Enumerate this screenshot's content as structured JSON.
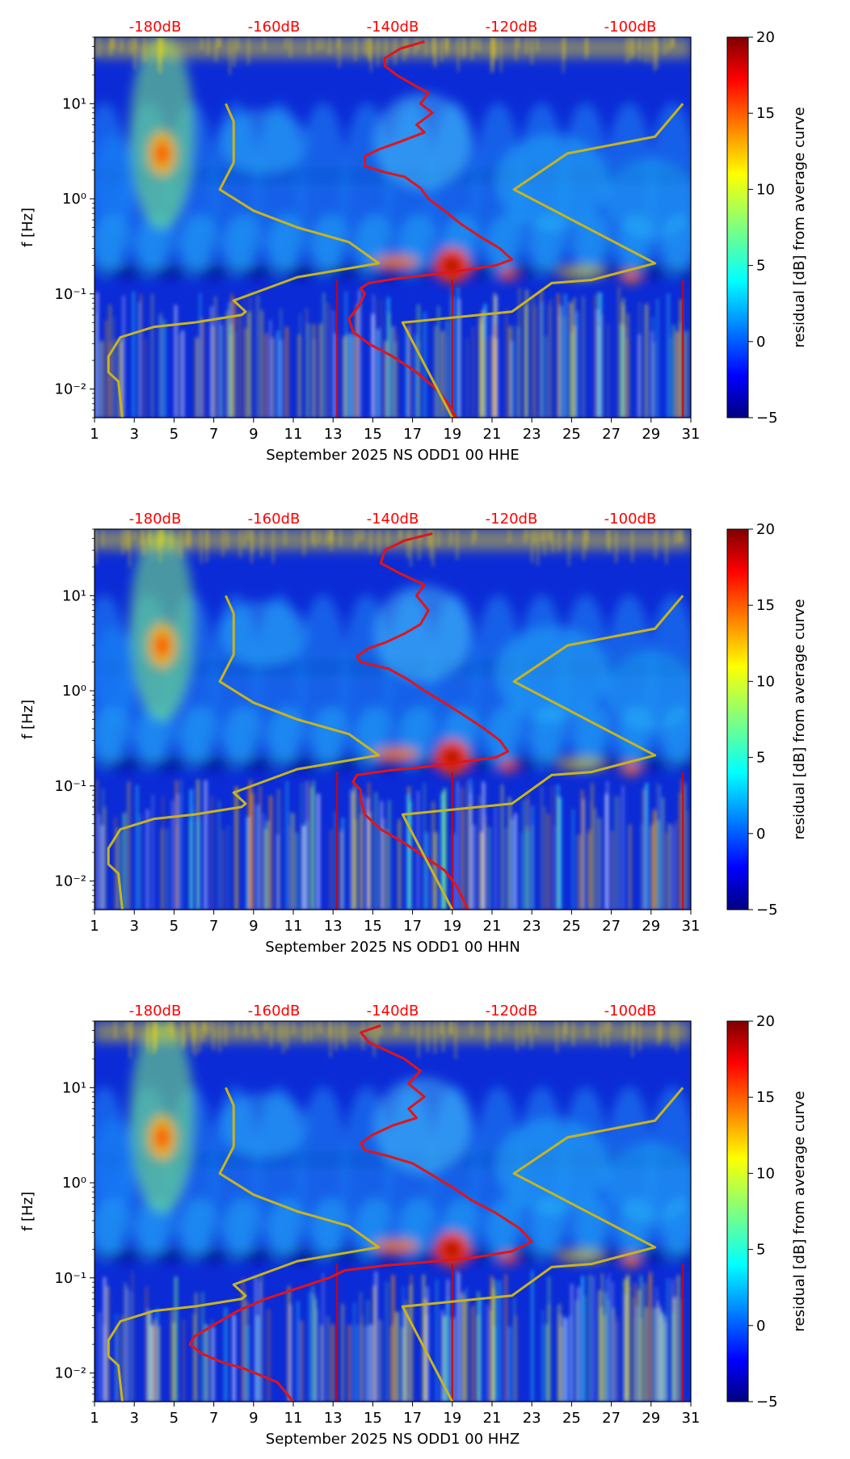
{
  "chart_data": [
    {
      "type": "heatmap",
      "xlabel": "September 2025 NS ODD1 00 HHE",
      "ylabel": "f [Hz]",
      "xlim": [
        1,
        31
      ],
      "ylim": [
        0.005,
        50
      ],
      "y_scale": "log",
      "x_ticks": [
        "1",
        "3",
        "5",
        "7",
        "9",
        "11",
        "13",
        "15",
        "17",
        "19",
        "21",
        "23",
        "25",
        "27",
        "29",
        "31"
      ],
      "y_ticks": [
        {
          "v": 10,
          "label": "10¹"
        },
        {
          "v": 1,
          "label": "10⁰"
        },
        {
          "v": 0.1,
          "label": "10⁻¹"
        },
        {
          "v": 0.01,
          "label": "10⁻²"
        }
      ],
      "top_labels": [
        "-180dB",
        "-160dB",
        "-140dB",
        "-120dB",
        "-100dB"
      ],
      "colorbar": {
        "label": "residual [dB] from average curve",
        "range": [
          -5,
          20
        ],
        "ticks": [
          "20",
          "15",
          "10",
          "5",
          "0",
          "−5"
        ],
        "colormap": "jet"
      },
      "series": [
        {
          "color": "#e0141a",
          "points": [
            [
              17.6,
              45
            ],
            [
              16.4,
              38
            ],
            [
              15.6,
              30
            ],
            [
              15.6,
              25
            ],
            [
              16.2,
              20
            ],
            [
              17.0,
              16
            ],
            [
              17.8,
              13
            ],
            [
              17.4,
              10
            ],
            [
              18.0,
              8
            ],
            [
              17.2,
              6
            ],
            [
              17.6,
              5
            ],
            [
              16.4,
              4
            ],
            [
              15.3,
              3.3
            ],
            [
              14.6,
              2.8
            ],
            [
              14.6,
              2.2
            ],
            [
              15.6,
              1.9
            ],
            [
              16.6,
              1.7
            ],
            [
              17.4,
              1.3
            ],
            [
              17.8,
              1.0
            ],
            [
              18.6,
              0.75
            ],
            [
              19.4,
              0.55
            ],
            [
              20.4,
              0.4
            ],
            [
              21.4,
              0.3
            ],
            [
              22.0,
              0.23
            ],
            [
              21.2,
              0.2
            ],
            [
              19.8,
              0.18
            ],
            [
              18.0,
              0.16
            ],
            [
              16.2,
              0.145
            ],
            [
              14.8,
              0.13
            ],
            [
              14.4,
              0.115
            ],
            [
              14.6,
              0.1
            ],
            [
              14.3,
              0.075
            ],
            [
              13.8,
              0.055
            ],
            [
              14.0,
              0.04
            ],
            [
              14.8,
              0.03
            ],
            [
              16.0,
              0.022
            ],
            [
              17.2,
              0.015
            ],
            [
              18.2,
              0.01
            ],
            [
              18.8,
              0.007
            ],
            [
              19.2,
              0.005
            ]
          ]
        },
        {
          "color": "#c8b41e",
          "points": [
            [
              7.6,
              10
            ],
            [
              8.0,
              6.5
            ],
            [
              8.0,
              2.4
            ],
            [
              7.3,
              1.25
            ],
            [
              9.0,
              0.75
            ],
            [
              11.2,
              0.5
            ],
            [
              13.8,
              0.35
            ],
            [
              15.3,
              0.21
            ],
            [
              11.2,
              0.15
            ],
            [
              8.0,
              0.085
            ],
            [
              8.6,
              0.065
            ],
            [
              8.4,
              0.06
            ],
            [
              6.0,
              0.05
            ],
            [
              4.0,
              0.045
            ],
            [
              2.3,
              0.035
            ],
            [
              1.7,
              0.022
            ],
            [
              1.7,
              0.015
            ],
            [
              2.2,
              0.012
            ],
            [
              2.4,
              0.005
            ]
          ]
        },
        {
          "color": "#c8b41e",
          "points": [
            [
              30.6,
              10
            ],
            [
              29.2,
              4.5
            ],
            [
              24.8,
              3.0
            ],
            [
              22.1,
              1.25
            ],
            [
              29.2,
              0.21
            ],
            [
              26.0,
              0.14
            ],
            [
              24.0,
              0.13
            ],
            [
              22.0,
              0.065
            ],
            [
              16.5,
              0.05
            ],
            [
              19.0,
              0.005
            ]
          ]
        }
      ]
    },
    {
      "type": "heatmap",
      "xlabel": "September 2025 NS ODD1 00 HHN",
      "ylabel": "f [Hz]",
      "xlim": [
        1,
        31
      ],
      "ylim": [
        0.005,
        50
      ],
      "y_scale": "log",
      "x_ticks": [
        "1",
        "3",
        "5",
        "7",
        "9",
        "11",
        "13",
        "15",
        "17",
        "19",
        "21",
        "23",
        "25",
        "27",
        "29",
        "31"
      ],
      "y_ticks": [
        {
          "v": 10,
          "label": "10¹"
        },
        {
          "v": 1,
          "label": "10⁰"
        },
        {
          "v": 0.1,
          "label": "10⁻¹"
        },
        {
          "v": 0.01,
          "label": "10⁻²"
        }
      ],
      "top_labels": [
        "-180dB",
        "-160dB",
        "-140dB",
        "-120dB",
        "-100dB"
      ],
      "colorbar": {
        "label": "residual [dB] from average curve",
        "range": [
          -5,
          20
        ],
        "ticks": [
          "20",
          "15",
          "10",
          "5",
          "0",
          "−5"
        ],
        "colormap": "jet"
      },
      "series": [
        {
          "color": "#e0141a",
          "points": [
            [
              18.0,
              45
            ],
            [
              16.6,
              38
            ],
            [
              15.6,
              30
            ],
            [
              15.4,
              22
            ],
            [
              16.4,
              17
            ],
            [
              17.6,
              13
            ],
            [
              17.2,
              10
            ],
            [
              17.8,
              7
            ],
            [
              17.4,
              5
            ],
            [
              16.6,
              4
            ],
            [
              15.6,
              3.2
            ],
            [
              14.8,
              2.8
            ],
            [
              14.2,
              2.3
            ],
            [
              14.4,
              2.0
            ],
            [
              15.8,
              1.7
            ],
            [
              16.8,
              1.3
            ],
            [
              17.6,
              1.0
            ],
            [
              18.6,
              0.75
            ],
            [
              19.6,
              0.55
            ],
            [
              20.6,
              0.4
            ],
            [
              21.4,
              0.3
            ],
            [
              21.8,
              0.23
            ],
            [
              21.2,
              0.2
            ],
            [
              19.6,
              0.18
            ],
            [
              17.8,
              0.16
            ],
            [
              15.8,
              0.145
            ],
            [
              14.2,
              0.13
            ],
            [
              14.0,
              0.11
            ],
            [
              14.4,
              0.09
            ],
            [
              14.4,
              0.07
            ],
            [
              14.6,
              0.05
            ],
            [
              15.4,
              0.035
            ],
            [
              16.6,
              0.025
            ],
            [
              17.6,
              0.018
            ],
            [
              18.6,
              0.013
            ],
            [
              19.2,
              0.009
            ],
            [
              19.8,
              0.005
            ]
          ]
        },
        {
          "color": "#c8b41e",
          "points": [
            [
              7.6,
              10
            ],
            [
              8.0,
              6.5
            ],
            [
              8.0,
              2.4
            ],
            [
              7.3,
              1.25
            ],
            [
              9.0,
              0.75
            ],
            [
              11.2,
              0.5
            ],
            [
              13.8,
              0.35
            ],
            [
              15.3,
              0.21
            ],
            [
              11.2,
              0.15
            ],
            [
              8.0,
              0.085
            ],
            [
              8.6,
              0.065
            ],
            [
              8.4,
              0.06
            ],
            [
              6.0,
              0.05
            ],
            [
              4.0,
              0.045
            ],
            [
              2.3,
              0.035
            ],
            [
              1.7,
              0.022
            ],
            [
              1.7,
              0.015
            ],
            [
              2.2,
              0.012
            ],
            [
              2.4,
              0.005
            ]
          ]
        },
        {
          "color": "#c8b41e",
          "points": [
            [
              30.6,
              10
            ],
            [
              29.2,
              4.5
            ],
            [
              24.8,
              3.0
            ],
            [
              22.1,
              1.25
            ],
            [
              29.2,
              0.21
            ],
            [
              26.0,
              0.14
            ],
            [
              24.0,
              0.13
            ],
            [
              22.0,
              0.065
            ],
            [
              16.5,
              0.05
            ],
            [
              19.0,
              0.005
            ]
          ]
        }
      ]
    },
    {
      "type": "heatmap",
      "xlabel": "September 2025 NS ODD1 00 HHZ",
      "ylabel": "f [Hz]",
      "xlim": [
        1,
        31
      ],
      "ylim": [
        0.005,
        50
      ],
      "y_scale": "log",
      "x_ticks": [
        "1",
        "3",
        "5",
        "7",
        "9",
        "11",
        "13",
        "15",
        "17",
        "19",
        "21",
        "23",
        "25",
        "27",
        "29",
        "31"
      ],
      "y_ticks": [
        {
          "v": 10,
          "label": "10¹"
        },
        {
          "v": 1,
          "label": "10⁰"
        },
        {
          "v": 0.1,
          "label": "10⁻¹"
        },
        {
          "v": 0.01,
          "label": "10⁻²"
        }
      ],
      "top_labels": [
        "-180dB",
        "-160dB",
        "-140dB",
        "-120dB",
        "-100dB"
      ],
      "colorbar": {
        "label": "residual [dB] from average curve",
        "range": [
          -5,
          20
        ],
        "ticks": [
          "20",
          "15",
          "10",
          "5",
          "0",
          "−5"
        ],
        "colormap": "jet"
      },
      "series": [
        {
          "color": "#e0141a",
          "points": [
            [
              15.4,
              45
            ],
            [
              14.4,
              38
            ],
            [
              14.8,
              30
            ],
            [
              15.6,
              25
            ],
            [
              16.6,
              20
            ],
            [
              17.4,
              15
            ],
            [
              16.8,
              11
            ],
            [
              17.6,
              8
            ],
            [
              16.8,
              6
            ],
            [
              17.2,
              4.8
            ],
            [
              16.0,
              4.0
            ],
            [
              15.0,
              3.2
            ],
            [
              14.4,
              2.6
            ],
            [
              14.6,
              2.2
            ],
            [
              15.8,
              1.9
            ],
            [
              17.0,
              1.6
            ],
            [
              18.0,
              1.2
            ],
            [
              19.0,
              0.9
            ],
            [
              20.0,
              0.65
            ],
            [
              21.2,
              0.48
            ],
            [
              22.4,
              0.33
            ],
            [
              23.0,
              0.24
            ],
            [
              22.0,
              0.19
            ],
            [
              20.2,
              0.165
            ],
            [
              18.2,
              0.15
            ],
            [
              15.6,
              0.135
            ],
            [
              13.6,
              0.12
            ],
            [
              12.8,
              0.1
            ],
            [
              11.4,
              0.08
            ],
            [
              9.6,
              0.06
            ],
            [
              8.2,
              0.045
            ],
            [
              7.0,
              0.032
            ],
            [
              6.0,
              0.024
            ],
            [
              5.8,
              0.02
            ],
            [
              6.4,
              0.016
            ],
            [
              7.4,
              0.013
            ],
            [
              8.6,
              0.011
            ],
            [
              10.2,
              0.008
            ],
            [
              11.0,
              0.005
            ]
          ]
        },
        {
          "color": "#c8b41e",
          "points": [
            [
              7.6,
              10
            ],
            [
              8.0,
              6.5
            ],
            [
              8.0,
              2.4
            ],
            [
              7.3,
              1.25
            ],
            [
              9.0,
              0.75
            ],
            [
              11.2,
              0.5
            ],
            [
              13.8,
              0.35
            ],
            [
              15.3,
              0.21
            ],
            [
              11.2,
              0.15
            ],
            [
              8.0,
              0.085
            ],
            [
              8.6,
              0.065
            ],
            [
              8.4,
              0.06
            ],
            [
              6.0,
              0.05
            ],
            [
              4.0,
              0.045
            ],
            [
              2.3,
              0.035
            ],
            [
              1.7,
              0.022
            ],
            [
              1.7,
              0.015
            ],
            [
              2.2,
              0.012
            ],
            [
              2.4,
              0.005
            ]
          ]
        },
        {
          "color": "#c8b41e",
          "points": [
            [
              30.6,
              10
            ],
            [
              29.2,
              4.5
            ],
            [
              24.8,
              3.0
            ],
            [
              22.1,
              1.25
            ],
            [
              29.2,
              0.21
            ],
            [
              26.0,
              0.14
            ],
            [
              24.0,
              0.13
            ],
            [
              22.0,
              0.065
            ],
            [
              16.5,
              0.05
            ],
            [
              19.0,
              0.005
            ]
          ]
        }
      ]
    }
  ]
}
